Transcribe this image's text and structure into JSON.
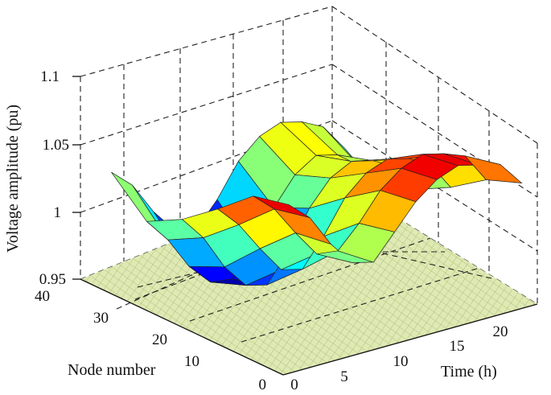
{
  "chart_data": {
    "type": "surface",
    "zlabel": "Voltage amplitude (pu)",
    "xlabel": "Time (h)",
    "ylabel": "Node number",
    "zlim": [
      0.95,
      1.1
    ],
    "xlim": [
      0,
      24
    ],
    "ylim": [
      0,
      40
    ],
    "z_ticks": [
      "0.95",
      "1",
      "1.05",
      "1.1"
    ],
    "x_ticks": [
      "0",
      "5",
      "10",
      "15",
      "20"
    ],
    "y_ticks": [
      "0",
      "10",
      "20",
      "30",
      "40"
    ],
    "grid": true,
    "colormap": "jet",
    "floor_color": "#d6e4a8",
    "time": [
      1,
      3,
      5,
      7,
      9,
      11,
      13,
      15,
      17,
      19,
      21,
      23
    ],
    "nodes": [
      1,
      8,
      15,
      22,
      29,
      36
    ],
    "voltage": [
      [
        1.072,
        1.058,
        1.034,
        1.016,
        1.012,
        1.03,
        1.048,
        1.06,
        1.066,
        1.062,
        1.058,
        1.04
      ],
      [
        1.066,
        1.052,
        1.03,
        1.01,
        1.008,
        1.024,
        1.044,
        1.056,
        1.062,
        1.058,
        1.052,
        1.03
      ],
      [
        1.044,
        1.028,
        1.006,
        0.986,
        0.982,
        1.002,
        1.026,
        1.04,
        1.046,
        1.042,
        1.034,
        1.012
      ],
      [
        1.024,
        1.006,
        0.98,
        0.962,
        0.958,
        0.978,
        1.006,
        1.024,
        1.032,
        1.028,
        1.02,
        0.998
      ],
      [
        1.01,
        0.992,
        0.968,
        0.952,
        0.95,
        0.966,
        0.994,
        1.014,
        1.024,
        1.02,
        1.008,
        0.986
      ],
      [
        1.034,
        1.02,
        0.996,
        0.978,
        0.974,
        0.992,
        1.016,
        1.03,
        1.036,
        1.032,
        1.024,
        1.004
      ]
    ]
  }
}
